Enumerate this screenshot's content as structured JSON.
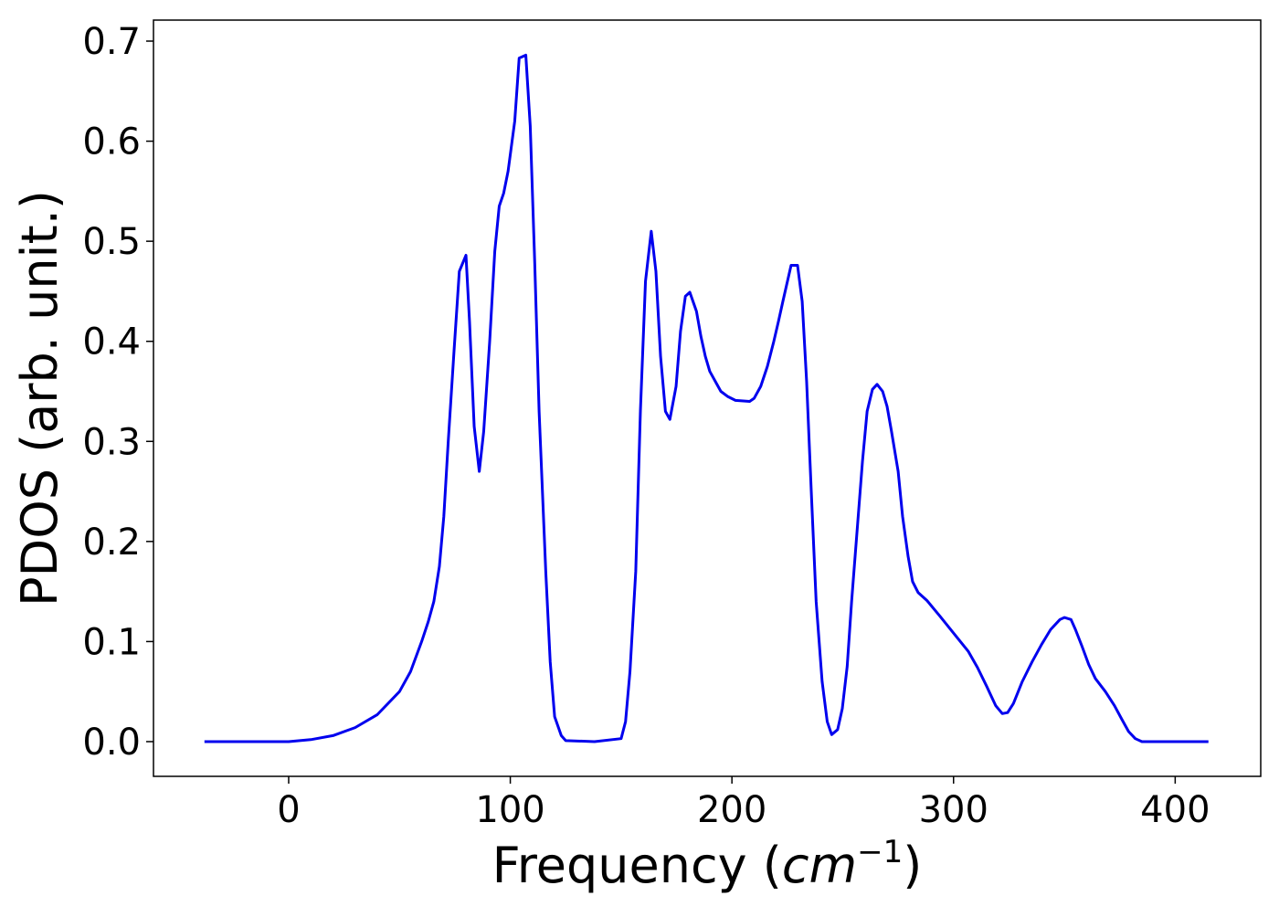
{
  "chart_data": {
    "type": "line",
    "xlabel": [
      "Frequency (",
      "cm",
      "−1",
      ")"
    ],
    "ylabel": "PDOS (arb. unit.)",
    "x": [
      -38,
      0,
      10,
      20,
      30,
      40,
      50,
      55,
      60,
      63,
      65.5,
      68,
      70,
      72,
      74.6,
      77,
      80,
      81.6,
      83.7,
      86,
      88,
      90.7,
      93,
      95,
      97,
      99,
      102,
      104,
      107,
      109,
      111,
      113,
      116,
      118,
      120,
      123,
      125,
      138,
      150,
      152,
      154,
      156.6,
      158.7,
      161,
      163.6,
      165.7,
      167.8,
      170,
      172,
      174.8,
      176.8,
      179,
      181,
      184,
      186,
      188,
      190,
      193,
      195,
      198,
      201.6,
      208,
      210,
      213,
      216,
      218.9,
      221,
      223,
      226.7,
      229.6,
      231.7,
      233.7,
      235.8,
      238,
      240.7,
      243,
      245,
      247.7,
      249.8,
      252,
      254,
      256.8,
      258.9,
      261,
      263.4,
      265.5,
      268,
      270,
      272,
      275,
      277,
      279.5,
      281.5,
      284,
      288,
      294,
      300.5,
      306.7,
      310.8,
      315,
      319,
      322,
      324.4,
      327,
      331,
      335.5,
      339.7,
      343.8,
      348,
      350,
      353,
      355,
      358,
      361,
      364,
      368.5,
      372.6,
      376,
      379,
      382,
      385,
      415
    ],
    "series": [
      {
        "name": "PDOS",
        "color": "#0000ee",
        "values": [
          0,
          0,
          0.002,
          0.006,
          0.014,
          0.027,
          0.05,
          0.07,
          0.1,
          0.12,
          0.14,
          0.175,
          0.225,
          0.3,
          0.39,
          0.47,
          0.486,
          0.42,
          0.315,
          0.27,
          0.31,
          0.4,
          0.49,
          0.535,
          0.548,
          0.57,
          0.62,
          0.683,
          0.686,
          0.615,
          0.48,
          0.33,
          0.17,
          0.08,
          0.025,
          0.006,
          0.001,
          0,
          0.003,
          0.02,
          0.07,
          0.17,
          0.33,
          0.46,
          0.51,
          0.47,
          0.385,
          0.33,
          0.322,
          0.355,
          0.41,
          0.445,
          0.449,
          0.43,
          0.405,
          0.385,
          0.37,
          0.358,
          0.35,
          0.345,
          0.341,
          0.34,
          0.343,
          0.355,
          0.375,
          0.4,
          0.42,
          0.44,
          0.476,
          0.476,
          0.44,
          0.36,
          0.25,
          0.14,
          0.06,
          0.02,
          0.007,
          0.012,
          0.033,
          0.075,
          0.14,
          0.22,
          0.28,
          0.33,
          0.352,
          0.357,
          0.35,
          0.335,
          0.31,
          0.27,
          0.225,
          0.185,
          0.16,
          0.149,
          0.141,
          0.125,
          0.107,
          0.09,
          0.074,
          0.055,
          0.036,
          0.028,
          0.029,
          0.038,
          0.06,
          0.08,
          0.097,
          0.112,
          0.122,
          0.124,
          0.122,
          0.112,
          0.095,
          0.077,
          0.063,
          0.05,
          0.036,
          0.022,
          0.01,
          0.003,
          0,
          0
        ]
      }
    ],
    "xlim": [
      -61,
      438.6
    ],
    "ylim": [
      -0.0347,
      0.721
    ],
    "xticks": [
      0,
      100,
      200,
      300,
      400
    ],
    "yticks": [
      {
        "value": 0,
        "label": "0.0"
      },
      0.1,
      0.2,
      0.3,
      0.4,
      0.5,
      0.6,
      0.7
    ]
  }
}
